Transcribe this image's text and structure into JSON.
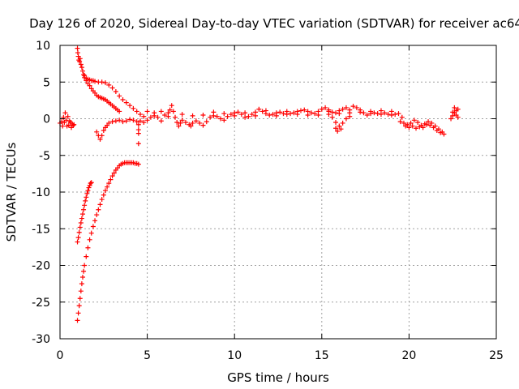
{
  "chart_data": {
    "type": "scatter",
    "title": "Day 126 of 2020, Sidereal Day-to-day VTEC variation (SDTVAR) for receiver ac64",
    "xlabel": "GPS time / hours",
    "ylabel": "SDTVAR / TECUs",
    "xlim": [
      0,
      25
    ],
    "ylim": [
      -30,
      10
    ],
    "xticks": [
      0,
      5,
      10,
      15,
      20,
      25
    ],
    "xtick_labels": [
      "0",
      "5",
      "10",
      "15",
      "20",
      "25"
    ],
    "yticks": [
      -30,
      -25,
      -20,
      -15,
      -10,
      -5,
      0,
      5,
      10
    ],
    "ytick_labels": [
      "-30",
      "-25",
      "-20",
      "-15",
      "-10",
      "-5",
      "0",
      "5",
      "10"
    ],
    "grid": true,
    "marker": "+",
    "color": "#ff0000",
    "series": [
      {
        "name": "ac64",
        "points": [
          [
            0.0,
            -0.6
          ],
          [
            0.1,
            -0.4
          ],
          [
            0.15,
            -1.0
          ],
          [
            0.2,
            0.2
          ],
          [
            0.25,
            -0.5
          ],
          [
            0.3,
            0.8
          ],
          [
            0.35,
            -0.2
          ],
          [
            0.4,
            -1.0
          ],
          [
            0.45,
            0.3
          ],
          [
            0.5,
            -0.9
          ],
          [
            0.55,
            -0.3
          ],
          [
            0.6,
            -0.5
          ],
          [
            0.65,
            -1.2
          ],
          [
            0.7,
            -0.7
          ],
          [
            0.75,
            -0.9
          ],
          [
            0.8,
            -0.8
          ],
          [
            1.0,
            9.6
          ],
          [
            1.02,
            9.0
          ],
          [
            1.05,
            8.5
          ],
          [
            1.08,
            8.0
          ],
          [
            1.12,
            7.8
          ],
          [
            1.15,
            8.2
          ],
          [
            1.2,
            7.4
          ],
          [
            1.25,
            7.0
          ],
          [
            1.3,
            6.5
          ],
          [
            1.35,
            6.0
          ],
          [
            1.4,
            5.6
          ],
          [
            1.5,
            5.2
          ],
          [
            1.6,
            4.8
          ],
          [
            1.7,
            4.5
          ],
          [
            1.8,
            4.1
          ],
          [
            1.9,
            3.8
          ],
          [
            2.0,
            3.5
          ],
          [
            2.1,
            3.2
          ],
          [
            2.2,
            3.0
          ],
          [
            2.3,
            2.9
          ],
          [
            2.4,
            2.8
          ],
          [
            2.5,
            2.7
          ],
          [
            2.6,
            2.6
          ],
          [
            2.7,
            2.4
          ],
          [
            2.8,
            2.2
          ],
          [
            2.9,
            2.0
          ],
          [
            3.0,
            1.8
          ],
          [
            3.1,
            1.6
          ],
          [
            3.2,
            1.4
          ],
          [
            3.3,
            1.2
          ],
          [
            3.4,
            1.0
          ],
          [
            1.4,
            5.9
          ],
          [
            1.5,
            5.5
          ],
          [
            1.6,
            5.4
          ],
          [
            1.7,
            5.3
          ],
          [
            1.8,
            5.2
          ],
          [
            1.9,
            5.2
          ],
          [
            2.0,
            5.1
          ],
          [
            2.2,
            5.0
          ],
          [
            2.4,
            5.0
          ],
          [
            2.6,
            4.9
          ],
          [
            2.8,
            4.6
          ],
          [
            3.0,
            4.2
          ],
          [
            3.2,
            3.7
          ],
          [
            3.4,
            3.1
          ],
          [
            3.6,
            2.6
          ],
          [
            3.8,
            2.2
          ],
          [
            4.0,
            1.8
          ],
          [
            4.2,
            1.4
          ],
          [
            4.4,
            1.0
          ],
          [
            4.6,
            0.6
          ],
          [
            4.8,
            0.3
          ],
          [
            1.0,
            -27.5
          ],
          [
            1.05,
            -26.5
          ],
          [
            1.1,
            -25.5
          ],
          [
            1.15,
            -24.5
          ],
          [
            1.2,
            -23.5
          ],
          [
            1.25,
            -22.5
          ],
          [
            1.3,
            -21.6
          ],
          [
            1.35,
            -20.8
          ],
          [
            1.4,
            -20.0
          ],
          [
            1.5,
            -18.8
          ],
          [
            1.6,
            -17.6
          ],
          [
            1.7,
            -16.5
          ],
          [
            1.8,
            -15.6
          ],
          [
            1.9,
            -14.7
          ],
          [
            2.0,
            -13.9
          ],
          [
            2.1,
            -13.1
          ],
          [
            2.2,
            -12.4
          ],
          [
            2.3,
            -11.7
          ],
          [
            2.4,
            -11.0
          ],
          [
            2.5,
            -10.4
          ],
          [
            2.6,
            -9.8
          ],
          [
            2.7,
            -9.3
          ],
          [
            2.8,
            -8.8
          ],
          [
            2.9,
            -8.3
          ],
          [
            3.0,
            -7.8
          ],
          [
            3.1,
            -7.4
          ],
          [
            3.2,
            -7.0
          ],
          [
            3.3,
            -6.7
          ],
          [
            3.4,
            -6.4
          ],
          [
            3.5,
            -6.2
          ],
          [
            3.6,
            -6.1
          ],
          [
            3.7,
            -6.0
          ],
          [
            3.8,
            -6.0
          ],
          [
            3.9,
            -6.0
          ],
          [
            4.0,
            -6.0
          ],
          [
            4.1,
            -6.0
          ],
          [
            4.2,
            -6.0
          ],
          [
            4.3,
            -6.1
          ],
          [
            4.4,
            -6.1
          ],
          [
            4.5,
            -6.2
          ],
          [
            1.0,
            -16.8
          ],
          [
            1.05,
            -16.2
          ],
          [
            1.1,
            -15.5
          ],
          [
            1.15,
            -14.8
          ],
          [
            1.2,
            -14.2
          ],
          [
            1.25,
            -13.6
          ],
          [
            1.3,
            -13.0
          ],
          [
            1.35,
            -12.4
          ],
          [
            1.4,
            -11.8
          ],
          [
            1.45,
            -11.2
          ],
          [
            1.5,
            -10.7
          ],
          [
            1.55,
            -10.2
          ],
          [
            1.6,
            -9.8
          ],
          [
            1.65,
            -9.4
          ],
          [
            1.7,
            -9.1
          ],
          [
            1.75,
            -8.8
          ],
          [
            1.8,
            -8.7
          ],
          [
            2.1,
            -1.8
          ],
          [
            2.2,
            -2.3
          ],
          [
            2.3,
            -2.8
          ],
          [
            2.4,
            -2.3
          ],
          [
            2.5,
            -1.6
          ],
          [
            2.6,
            -1.2
          ],
          [
            2.7,
            -0.9
          ],
          [
            2.8,
            -0.6
          ],
          [
            3.0,
            -0.4
          ],
          [
            3.2,
            -0.3
          ],
          [
            3.4,
            -0.2
          ],
          [
            3.6,
            -0.4
          ],
          [
            3.8,
            -0.3
          ],
          [
            4.0,
            -0.1
          ],
          [
            4.2,
            -0.2
          ],
          [
            4.4,
            -0.4
          ],
          [
            4.5,
            -0.8
          ],
          [
            4.5,
            -1.5
          ],
          [
            4.5,
            -2.0
          ],
          [
            4.5,
            -3.4
          ],
          [
            4.6,
            -0.3
          ],
          [
            4.8,
            -0.5
          ],
          [
            5.0,
            -0.2
          ],
          [
            5.2,
            0.2
          ],
          [
            5.4,
            0.4
          ],
          [
            5.6,
            0.2
          ],
          [
            5.8,
            -0.3
          ],
          [
            6.0,
            0.5
          ],
          [
            6.2,
            0.8
          ],
          [
            6.3,
            1.2
          ],
          [
            6.4,
            1.8
          ],
          [
            6.5,
            1.0
          ],
          [
            6.6,
            0.2
          ],
          [
            6.7,
            -0.5
          ],
          [
            6.8,
            -1.0
          ],
          [
            6.9,
            -0.6
          ],
          [
            7.0,
            -0.2
          ],
          [
            7.2,
            -0.5
          ],
          [
            7.4,
            -0.8
          ],
          [
            7.5,
            -1.0
          ],
          [
            7.6,
            -0.6
          ],
          [
            7.8,
            -0.3
          ],
          [
            8.0,
            -0.6
          ],
          [
            8.2,
            -0.9
          ],
          [
            8.4,
            -0.4
          ],
          [
            8.6,
            0.2
          ],
          [
            8.8,
            0.4
          ],
          [
            9.0,
            0.3
          ],
          [
            9.2,
            0.0
          ],
          [
            9.4,
            -0.2
          ],
          [
            9.6,
            0.3
          ],
          [
            9.8,
            0.6
          ],
          [
            10.0,
            0.8
          ],
          [
            10.2,
            0.9
          ],
          [
            10.4,
            0.6
          ],
          [
            10.6,
            0.2
          ],
          [
            10.8,
            0.3
          ],
          [
            11.0,
            0.6
          ],
          [
            11.2,
            0.9
          ],
          [
            11.4,
            1.3
          ],
          [
            11.6,
            1.0
          ],
          [
            11.8,
            0.7
          ],
          [
            12.0,
            0.5
          ],
          [
            12.2,
            0.6
          ],
          [
            12.4,
            0.8
          ],
          [
            12.6,
            0.9
          ],
          [
            12.8,
            0.7
          ],
          [
            13.0,
            0.6
          ],
          [
            13.2,
            0.7
          ],
          [
            13.4,
            0.8
          ],
          [
            13.6,
            1.0
          ],
          [
            13.8,
            1.1
          ],
          [
            14.0,
            1.2
          ],
          [
            14.2,
            1.0
          ],
          [
            14.4,
            0.8
          ],
          [
            14.6,
            0.7
          ],
          [
            14.8,
            1.0
          ],
          [
            15.0,
            1.3
          ],
          [
            15.2,
            1.5
          ],
          [
            15.4,
            1.2
          ],
          [
            15.6,
            0.9
          ],
          [
            15.8,
            0.8
          ],
          [
            16.0,
            1.1
          ],
          [
            16.2,
            1.3
          ],
          [
            16.4,
            1.5
          ],
          [
            16.6,
            1.2
          ],
          [
            16.8,
            1.7
          ],
          [
            17.0,
            1.5
          ],
          [
            17.2,
            1.2
          ],
          [
            17.4,
            0.8
          ],
          [
            17.6,
            0.5
          ],
          [
            17.8,
            0.7
          ],
          [
            18.0,
            0.8
          ],
          [
            18.2,
            0.7
          ],
          [
            18.4,
            0.6
          ],
          [
            18.6,
            0.8
          ],
          [
            18.8,
            0.6
          ],
          [
            19.0,
            0.5
          ],
          [
            19.2,
            0.6
          ],
          [
            19.4,
            0.7
          ],
          [
            5.0,
            1.0
          ],
          [
            5.4,
            0.8
          ],
          [
            5.8,
            1.0
          ],
          [
            6.2,
            0.3
          ],
          [
            7.0,
            0.6
          ],
          [
            7.6,
            0.4
          ],
          [
            8.2,
            0.5
          ],
          [
            8.8,
            0.9
          ],
          [
            9.4,
            0.7
          ],
          [
            10.0,
            0.4
          ],
          [
            10.6,
            0.8
          ],
          [
            11.2,
            0.4
          ],
          [
            11.8,
            1.1
          ],
          [
            12.4,
            0.4
          ],
          [
            13.0,
            1.0
          ],
          [
            13.6,
            0.6
          ],
          [
            14.2,
            0.5
          ],
          [
            14.8,
            0.5
          ],
          [
            15.4,
            0.6
          ],
          [
            16.0,
            0.7
          ],
          [
            16.6,
            0.8
          ],
          [
            17.2,
            0.9
          ],
          [
            17.8,
            1.0
          ],
          [
            18.4,
            1.1
          ],
          [
            19.0,
            1.0
          ],
          [
            15.4,
            1.0
          ],
          [
            15.6,
            0.2
          ],
          [
            15.8,
            -0.5
          ],
          [
            16.0,
            -1.0
          ],
          [
            16.1,
            -1.4
          ],
          [
            15.9,
            -1.7
          ],
          [
            15.8,
            -1.3
          ],
          [
            16.2,
            -0.6
          ],
          [
            16.4,
            0.0
          ],
          [
            16.6,
            0.3
          ],
          [
            19.5,
            -0.4
          ],
          [
            19.7,
            -0.6
          ],
          [
            19.9,
            -0.8
          ],
          [
            20.1,
            -0.6
          ],
          [
            20.3,
            -0.2
          ],
          [
            20.5,
            -0.5
          ],
          [
            20.7,
            -0.9
          ],
          [
            20.9,
            -0.7
          ],
          [
            21.1,
            -0.4
          ],
          [
            21.3,
            -0.6
          ],
          [
            21.5,
            -1.0
          ],
          [
            21.7,
            -1.4
          ],
          [
            21.9,
            -1.8
          ],
          [
            22.0,
            -2.1
          ],
          [
            19.6,
            0.2
          ],
          [
            19.8,
            -1.0
          ],
          [
            20.0,
            -1.2
          ],
          [
            20.2,
            -1.0
          ],
          [
            20.4,
            -1.3
          ],
          [
            20.6,
            -1.1
          ],
          [
            20.8,
            -1.2
          ],
          [
            21.0,
            -0.8
          ],
          [
            21.2,
            -0.9
          ],
          [
            21.4,
            -1.2
          ],
          [
            21.6,
            -1.6
          ],
          [
            21.8,
            -1.9
          ],
          [
            22.4,
            0.0
          ],
          [
            22.5,
            0.4
          ],
          [
            22.6,
            0.8
          ],
          [
            22.7,
            1.1
          ],
          [
            22.8,
            1.3
          ],
          [
            22.6,
            1.5
          ],
          [
            22.5,
            0.9
          ],
          [
            22.7,
            0.5
          ],
          [
            22.8,
            0.2
          ]
        ]
      }
    ]
  }
}
